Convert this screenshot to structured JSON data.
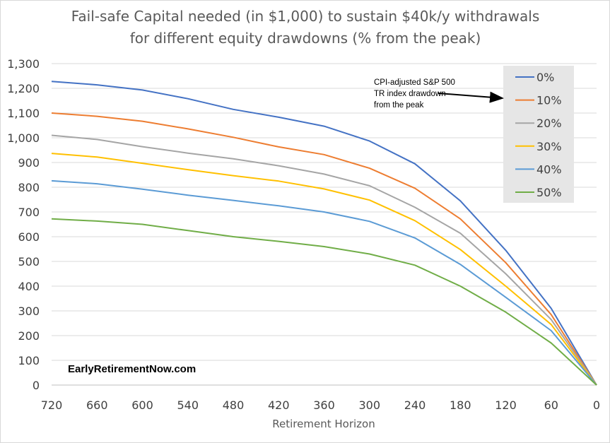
{
  "chart_data": {
    "type": "line",
    "title": "Fail-safe Capital needed (in $1,000) to sustain $40k/y withdrawals",
    "subtitle": "for different equity drawdowns (% from the peak)",
    "xlabel": "Retirement  Horizon",
    "ylabel": "",
    "x": [
      720,
      660,
      600,
      540,
      480,
      420,
      360,
      300,
      240,
      180,
      120,
      60,
      0
    ],
    "x_tick_labels": [
      "720",
      "660",
      "600",
      "540",
      "480",
      "420",
      "360",
      "300",
      "240",
      "180",
      "120",
      "60",
      "0"
    ],
    "x_reversed": true,
    "ylim": [
      0,
      1300
    ],
    "y_ticks": [
      0,
      100,
      200,
      300,
      400,
      500,
      600,
      700,
      800,
      900,
      1000,
      1100,
      1200,
      1300
    ],
    "y_tick_labels": [
      "0",
      "100",
      "200",
      "300",
      "400",
      "500",
      "600",
      "700",
      "800",
      "900",
      "1,000",
      "1,100",
      "1,200",
      "1,300"
    ],
    "grid": "horizontal",
    "legend_position": "top-right",
    "legend_background": "#e6e6e6",
    "series": [
      {
        "name": "0%",
        "color": "#4472c4",
        "values": [
          1228,
          1214,
          1193,
          1158,
          1115,
          1083,
          1047,
          987,
          895,
          745,
          545,
          310,
          0
        ]
      },
      {
        "name": "10%",
        "color": "#ed7d31",
        "values": [
          1100,
          1087,
          1067,
          1036,
          1002,
          963,
          932,
          877,
          796,
          672,
          495,
          285,
          0
        ]
      },
      {
        "name": "20%",
        "color": "#a5a5a5",
        "values": [
          1010,
          993,
          964,
          938,
          915,
          887,
          853,
          806,
          719,
          614,
          450,
          265,
          0
        ]
      },
      {
        "name": "30%",
        "color": "#ffc000",
        "values": [
          937,
          922,
          897,
          871,
          847,
          825,
          793,
          748,
          665,
          548,
          400,
          245,
          0
        ]
      },
      {
        "name": "40%",
        "color": "#5b9bd5",
        "values": [
          826,
          814,
          792,
          768,
          747,
          725,
          700,
          662,
          595,
          488,
          355,
          220,
          0
        ]
      },
      {
        "name": "50%",
        "color": "#70ad47",
        "values": [
          672,
          663,
          650,
          625,
          600,
          581,
          560,
          530,
          485,
          400,
          295,
          170,
          0
        ]
      }
    ],
    "annotation": [
      "CPI-adjusted S&P 500",
      "TR index drawdown",
      "from the peak"
    ],
    "watermark": "EarlyRetirementNow.com"
  }
}
